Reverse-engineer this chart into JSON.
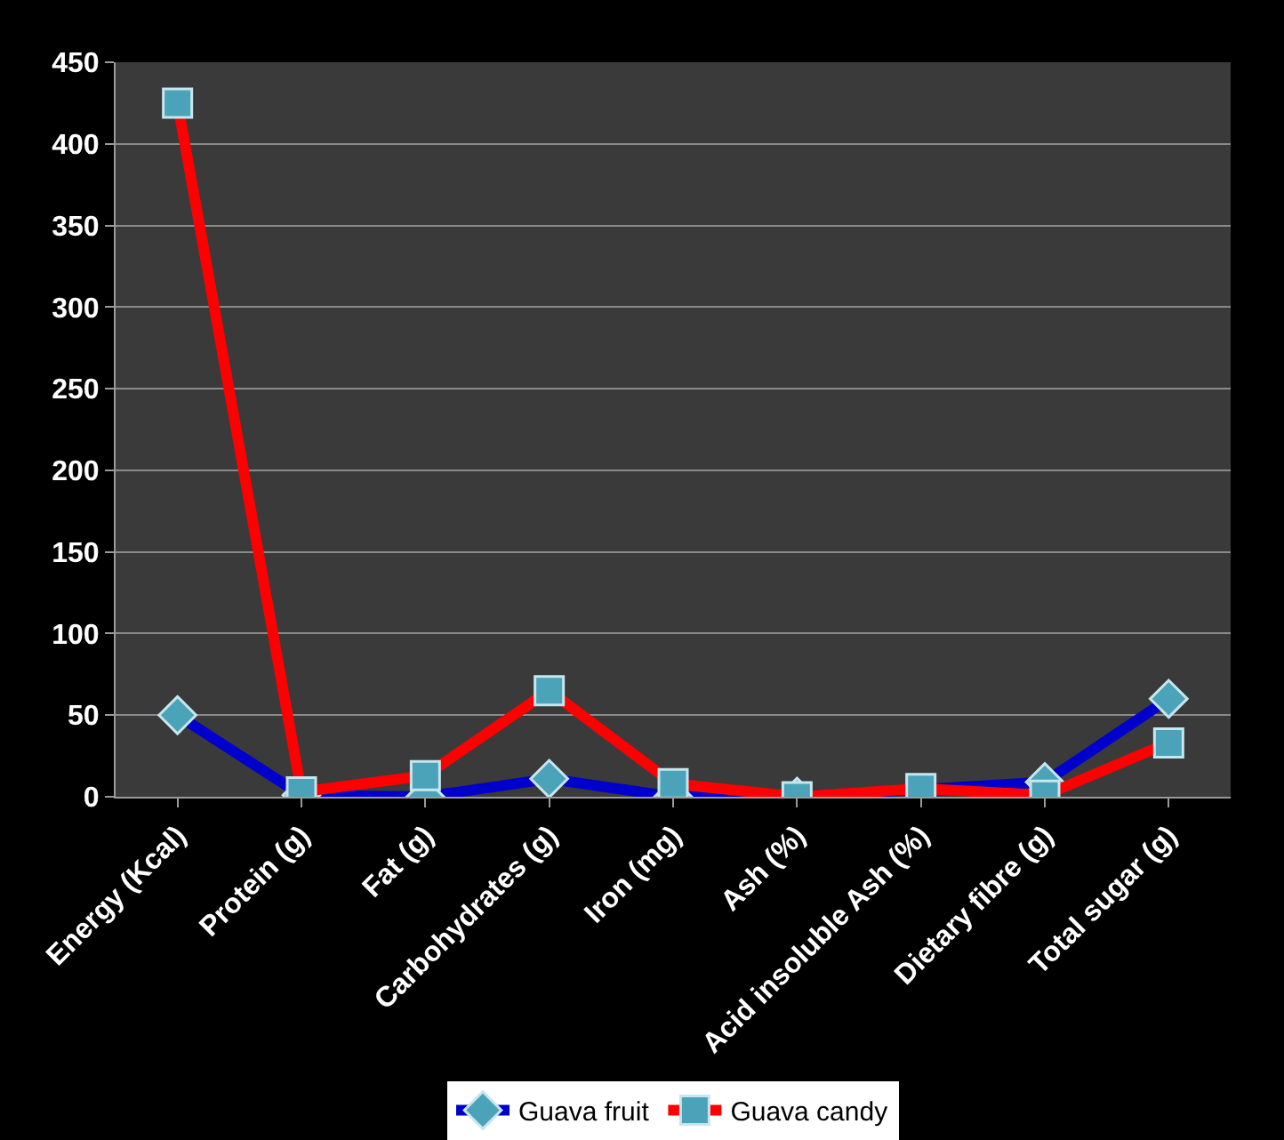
{
  "chart_data": {
    "type": "line",
    "categories": [
      "Energy (Kcal)",
      "Protein (g)",
      "Fat (g)",
      "Carbohydrates (g)",
      "Iron (mg)",
      "Ash (%)",
      "Acid insoluble Ash (%)",
      "Dietary fibre (g)",
      "Total sugar (g)"
    ],
    "series": [
      {
        "name": "Guava fruit",
        "color": "#0000cc",
        "marker": "diamond",
        "values": [
          50,
          1,
          0,
          11,
          0,
          0,
          null,
          9,
          60
        ]
      },
      {
        "name": "Guava candy",
        "color": "#ff0000",
        "marker": "square",
        "values": [
          425,
          3,
          13,
          65,
          8,
          0,
          5,
          1,
          33
        ]
      }
    ],
    "ylim": [
      0,
      450
    ],
    "yticks": [
      0,
      50,
      100,
      150,
      200,
      250,
      300,
      350,
      400,
      450
    ],
    "grid": "y",
    "legend": "bottom"
  }
}
